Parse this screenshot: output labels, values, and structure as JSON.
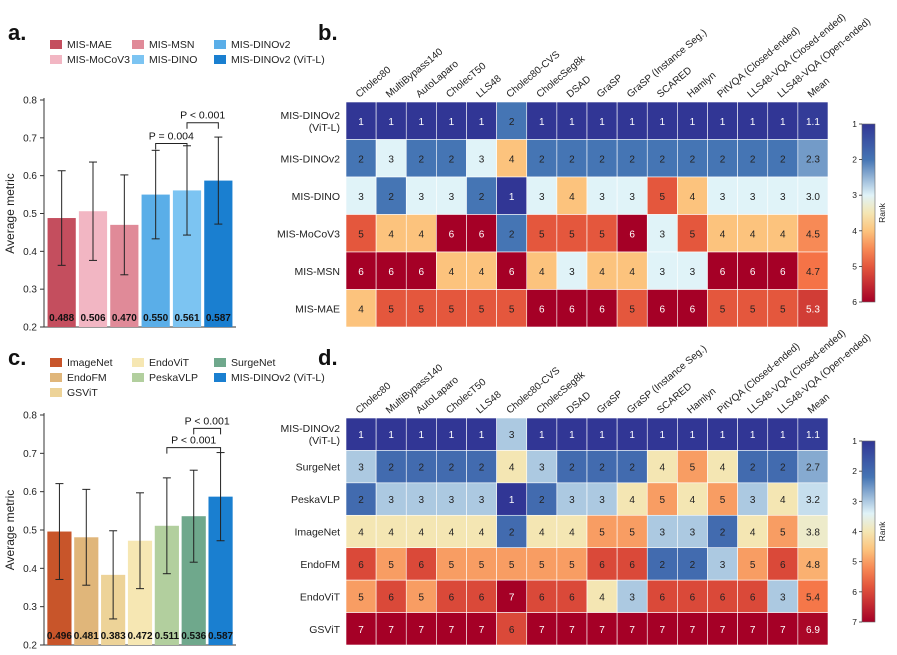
{
  "chart_data": [
    {
      "panel": "a.",
      "type": "bar",
      "ylabel": "Average metric",
      "ylim": [
        0.2,
        0.8
      ],
      "yticks": [
        "0.2",
        "0.3",
        "0.4",
        "0.5",
        "0.6",
        "0.7",
        "0.8"
      ],
      "yticks_values": [
        0.2,
        0.3,
        0.4,
        0.5,
        0.6,
        0.7,
        0.8
      ],
      "legend": [
        {
          "label": "MIS-MAE",
          "color": "#c44e5e"
        },
        {
          "label": "MIS-MSN",
          "color": "#e08a98"
        },
        {
          "label": "MIS-DINOv2",
          "color": "#5aaee8"
        },
        {
          "label": "MIS-MoCoV3",
          "color": "#f2b6c3"
        },
        {
          "label": "MIS-DINO",
          "color": "#7cc4f2"
        },
        {
          "label": "MIS-DINOv2 (ViT-L)",
          "color": "#1a7fd0"
        }
      ],
      "bars": [
        {
          "label": "MIS-MAE",
          "value": 0.488,
          "value_label": "0.488",
          "err": 0.125,
          "color": "#c44e5e"
        },
        {
          "label": "MIS-MoCoV3",
          "value": 0.506,
          "value_label": "0.506",
          "err": 0.13,
          "color": "#f2b6c3"
        },
        {
          "label": "MIS-MSN",
          "value": 0.47,
          "value_label": "0.470",
          "err": 0.132,
          "color": "#e08a98"
        },
        {
          "label": "MIS-DINOv2",
          "value": 0.55,
          "value_label": "0.550",
          "err": 0.117,
          "color": "#5aaee8"
        },
        {
          "label": "MIS-DINO",
          "value": 0.561,
          "value_label": "0.561",
          "err": 0.118,
          "color": "#7cc4f2"
        },
        {
          "label": "MIS-DINOv2 (ViT-L)",
          "value": 0.587,
          "value_label": "0.587",
          "err": 0.115,
          "color": "#1a7fd0"
        }
      ],
      "annotations": [
        {
          "text": "P = 0.004",
          "from": 3,
          "to": 4,
          "level": 0.685
        },
        {
          "text": "P < 0.001",
          "from": 4,
          "to": 5,
          "level": 0.74
        }
      ]
    },
    {
      "panel": "b.",
      "type": "heatmap",
      "columns": [
        "Cholec80",
        "MultiBypass140",
        "AutoLaparo",
        "CholecT50",
        "LLS48",
        "Cholec80-CVS",
        "CholecSeg8k",
        "DSAD",
        "GraSP",
        "GraSP (Instance Seg.)",
        "SCARED",
        "Hamlyn",
        "PitVQA (Closed-ended)",
        "LLS48-VQA (Closed-ended)",
        "LLS48-VQA (Open-ended)",
        "Mean"
      ],
      "rows": [
        "MIS-DINOv2\n(ViT-L)",
        "MIS-DINOv2",
        "MIS-DINO",
        "MIS-MoCoV3",
        "MIS-MSN",
        "MIS-MAE"
      ],
      "values": [
        [
          1,
          1,
          1,
          1,
          1,
          2,
          1,
          1,
          1,
          1,
          1,
          1,
          1,
          1,
          1,
          1.1
        ],
        [
          2,
          3,
          2,
          2,
          3,
          4,
          2,
          2,
          2,
          2,
          2,
          2,
          2,
          2,
          2,
          2.3
        ],
        [
          3,
          2,
          3,
          3,
          2,
          1,
          3,
          4,
          3,
          3,
          5,
          4,
          3,
          3,
          3,
          3.0
        ],
        [
          5,
          4,
          4,
          6,
          6,
          2,
          5,
          5,
          5,
          6,
          3,
          5,
          4,
          4,
          4,
          4.5
        ],
        [
          6,
          6,
          6,
          4,
          4,
          6,
          4,
          3,
          4,
          4,
          3,
          3,
          6,
          6,
          6,
          4.7
        ],
        [
          4,
          5,
          5,
          5,
          5,
          5,
          6,
          6,
          6,
          5,
          6,
          6,
          5,
          5,
          5,
          5.3
        ]
      ],
      "labels": [
        [
          "1",
          "1",
          "1",
          "1",
          "1",
          "2",
          "1",
          "1",
          "1",
          "1",
          "1",
          "1",
          "1",
          "1",
          "1",
          "1.1"
        ],
        [
          "2",
          "3",
          "2",
          "2",
          "3",
          "4",
          "2",
          "2",
          "2",
          "2",
          "2",
          "2",
          "2",
          "2",
          "2",
          "2.3"
        ],
        [
          "3",
          "2",
          "3",
          "3",
          "2",
          "1",
          "3",
          "4",
          "3",
          "3",
          "5",
          "4",
          "3",
          "3",
          "3",
          "3.0"
        ],
        [
          "5",
          "4",
          "4",
          "6",
          "6",
          "2",
          "5",
          "5",
          "5",
          "6",
          "3",
          "5",
          "4",
          "4",
          "4",
          "4.5"
        ],
        [
          "6",
          "6",
          "6",
          "4",
          "4",
          "6",
          "4",
          "3",
          "4",
          "4",
          "3",
          "3",
          "6",
          "6",
          "6",
          "4.7"
        ],
        [
          "4",
          "5",
          "5",
          "5",
          "5",
          "5",
          "6",
          "6",
          "6",
          "5",
          "6",
          "6",
          "5",
          "5",
          "5",
          "5.3"
        ]
      ],
      "colorbar": {
        "label": "Rank",
        "min": 1,
        "max": 6,
        "ticks": [
          "1",
          "2",
          "3",
          "4",
          "5",
          "6"
        ]
      }
    },
    {
      "panel": "c.",
      "type": "bar",
      "ylabel": "Average metric",
      "ylim": [
        0.2,
        0.8
      ],
      "yticks": [
        "0.2",
        "0.3",
        "0.4",
        "0.5",
        "0.6",
        "0.7",
        "0.8"
      ],
      "yticks_values": [
        0.2,
        0.3,
        0.4,
        0.5,
        0.6,
        0.7,
        0.8
      ],
      "legend": [
        {
          "label": "ImageNet",
          "color": "#c8552a"
        },
        {
          "label": "EndoViT",
          "color": "#f6e7b3"
        },
        {
          "label": "SurgeNet",
          "color": "#6fa88c"
        },
        {
          "label": "EndoFM",
          "color": "#e0b67a"
        },
        {
          "label": "PeskaVLP",
          "color": "#b2cf9e"
        },
        {
          "label": "MIS-DINOv2 (ViT-L)",
          "color": "#1a7fd0"
        },
        {
          "label": "GSViT",
          "color": "#edd398"
        }
      ],
      "bars": [
        {
          "label": "ImageNet",
          "value": 0.496,
          "value_label": "0.496",
          "err": 0.125,
          "color": "#c8552a"
        },
        {
          "label": "EndoFM",
          "value": 0.481,
          "value_label": "0.481",
          "err": 0.125,
          "color": "#e0b67a"
        },
        {
          "label": "GSViT",
          "value": 0.383,
          "value_label": "0.383",
          "err": 0.115,
          "color": "#edd398"
        },
        {
          "label": "EndoViT",
          "value": 0.472,
          "value_label": "0.472",
          "err": 0.125,
          "color": "#f6e7b3"
        },
        {
          "label": "PeskaVLP",
          "value": 0.511,
          "value_label": "0.511",
          "err": 0.125,
          "color": "#b2cf9e"
        },
        {
          "label": "SurgeNet",
          "value": 0.536,
          "value_label": "0.536",
          "err": 0.12,
          "color": "#6fa88c"
        },
        {
          "label": "MIS-DINOv2 (ViT-L)",
          "value": 0.587,
          "value_label": "0.587",
          "err": 0.115,
          "color": "#1a7fd0"
        }
      ],
      "annotations": [
        {
          "text": "P < 0.001",
          "from": 4,
          "to": 6,
          "level": 0.715
        },
        {
          "text": "P < 0.001",
          "from": 5,
          "to": 6,
          "level": 0.765
        }
      ]
    },
    {
      "panel": "d.",
      "type": "heatmap",
      "columns": [
        "Cholec80",
        "MultiBypass140",
        "AutoLaparo",
        "CholecT50",
        "LLS48",
        "Cholec80-CVS",
        "CholecSeg8k",
        "DSAD",
        "GraSP",
        "GraSP (Instance Seg.)",
        "SCARED",
        "Hamlyn",
        "PitVQA (Closed-ended)",
        "LLS48-VQA (Closed-ended)",
        "LLS48-VQA (Open-ended)",
        "Mean"
      ],
      "rows": [
        "MIS-DINOv2\n(ViT-L)",
        "SurgeNet",
        "PeskaVLP",
        "ImageNet",
        "EndoFM",
        "EndoViT",
        "GSViT"
      ],
      "values": [
        [
          1,
          1,
          1,
          1,
          1,
          3,
          1,
          1,
          1,
          1,
          1,
          1,
          1,
          1,
          1,
          1.1
        ],
        [
          3,
          2,
          2,
          2,
          2,
          4,
          3,
          2,
          2,
          2,
          4,
          5,
          4,
          2,
          2,
          2.7
        ],
        [
          2,
          3,
          3,
          3,
          3,
          1,
          2,
          3,
          3,
          4,
          5,
          4,
          5,
          3,
          4,
          3.2
        ],
        [
          4,
          4,
          4,
          4,
          4,
          2,
          4,
          4,
          5,
          5,
          3,
          3,
          2,
          4,
          5,
          3.8
        ],
        [
          6,
          5,
          6,
          5,
          5,
          5,
          5,
          5,
          6,
          6,
          2,
          2,
          3,
          5,
          6,
          4.8
        ],
        [
          5,
          6,
          5,
          6,
          6,
          7,
          6,
          6,
          4,
          3,
          6,
          6,
          6,
          6,
          3,
          5.4
        ],
        [
          7,
          7,
          7,
          7,
          7,
          6,
          7,
          7,
          7,
          7,
          7,
          7,
          7,
          7,
          7,
          6.9
        ]
      ],
      "labels": [
        [
          "1",
          "1",
          "1",
          "1",
          "1",
          "3",
          "1",
          "1",
          "1",
          "1",
          "1",
          "1",
          "1",
          "1",
          "1",
          "1.1"
        ],
        [
          "3",
          "2",
          "2",
          "2",
          "2",
          "4",
          "3",
          "2",
          "2",
          "2",
          "4",
          "5",
          "4",
          "2",
          "2",
          "2.7"
        ],
        [
          "2",
          "3",
          "3",
          "3",
          "3",
          "1",
          "2",
          "3",
          "3",
          "4",
          "5",
          "4",
          "5",
          "3",
          "4",
          "3.2"
        ],
        [
          "4",
          "4",
          "4",
          "4",
          "4",
          "2",
          "4",
          "4",
          "5",
          "5",
          "3",
          "3",
          "2",
          "4",
          "5",
          "3.8"
        ],
        [
          "6",
          "5",
          "6",
          "5",
          "5",
          "5",
          "5",
          "5",
          "6",
          "6",
          "2",
          "2",
          "3",
          "5",
          "6",
          "4.8"
        ],
        [
          "5",
          "6",
          "5",
          "6",
          "6",
          "7",
          "6",
          "6",
          "4",
          "3",
          "6",
          "6",
          "6",
          "6",
          "3",
          "5.4"
        ],
        [
          "7",
          "7",
          "7",
          "7",
          "7",
          "6",
          "7",
          "7",
          "7",
          "7",
          "7",
          "7",
          "7",
          "7",
          "7",
          "6.9"
        ]
      ],
      "colorbar": {
        "label": "Rank",
        "min": 1,
        "max": 7,
        "ticks": [
          "1",
          "2",
          "3",
          "4",
          "5",
          "6",
          "7"
        ]
      }
    }
  ]
}
